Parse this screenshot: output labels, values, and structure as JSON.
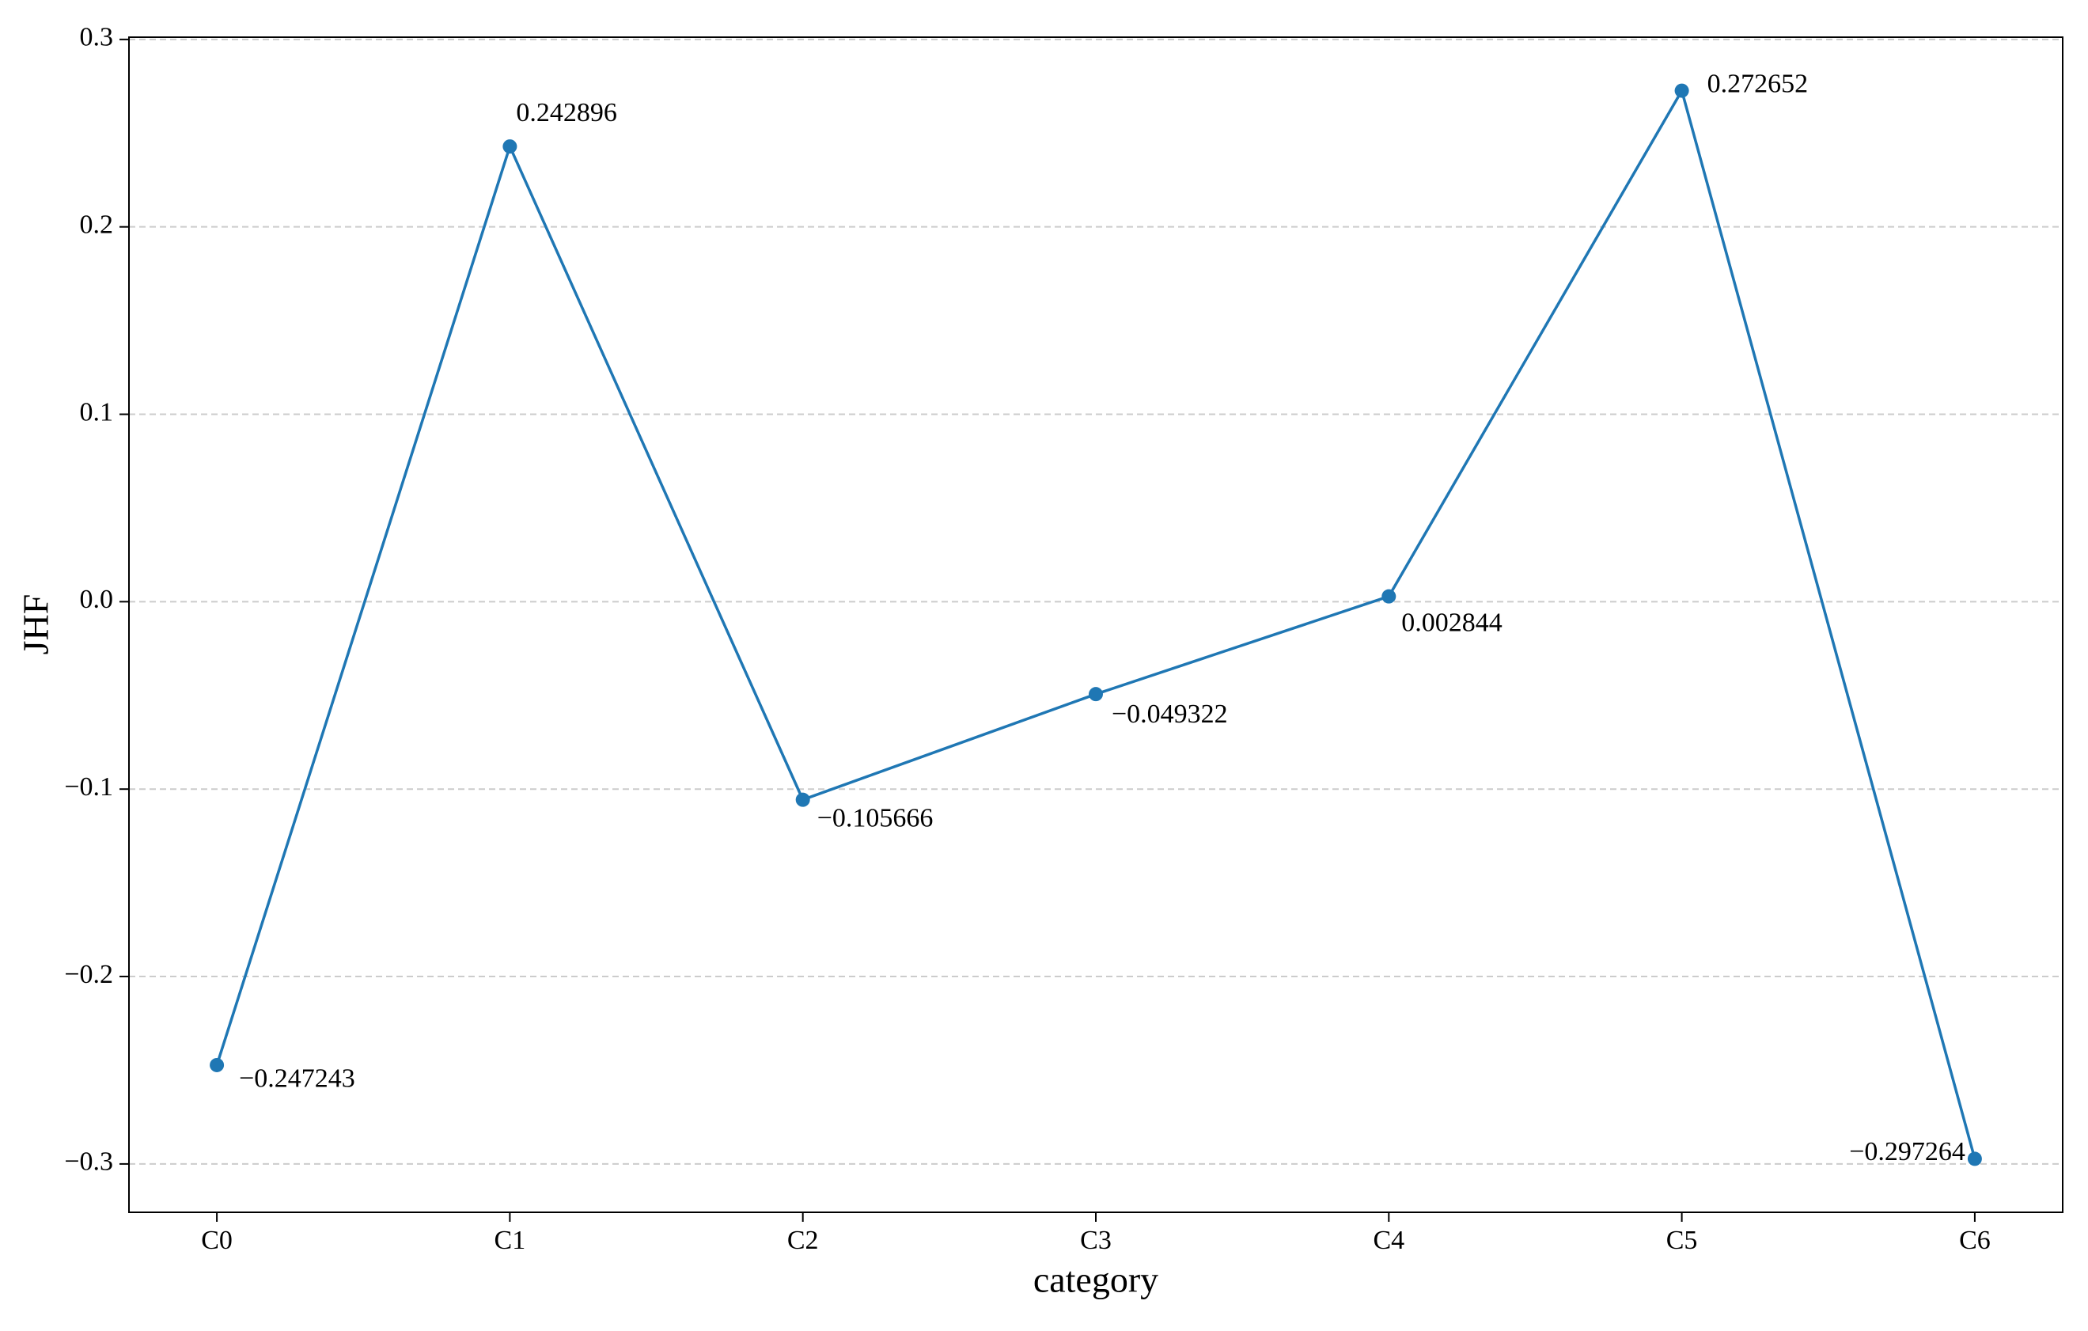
{
  "chart_data": {
    "type": "line",
    "x_label": "category",
    "y_label": "JHF",
    "categories": [
      "C0",
      "C1",
      "C2",
      "C3",
      "C4",
      "C5",
      "C6"
    ],
    "series": [
      {
        "color": "#1f77b4",
        "values": [
          -0.247243,
          0.242896,
          -0.105666,
          -0.049322,
          0.002844,
          0.272652,
          -0.297264
        ],
        "value_labels": [
          "−0.247243",
          "0.242896",
          "−0.105666",
          "−0.049322",
          "0.002844",
          "0.272652",
          "−0.297264"
        ]
      }
    ],
    "ylim": [
      -0.3258,
      0.3012
    ],
    "yticks": [
      {
        "value": -0.3,
        "label": "−0.3"
      },
      {
        "value": -0.2,
        "label": "−0.2"
      },
      {
        "value": -0.1,
        "label": "−0.1"
      },
      {
        "value": 0.0,
        "label": "0.0"
      },
      0.1,
      0.2,
      0.3
    ],
    "grid": true
  }
}
